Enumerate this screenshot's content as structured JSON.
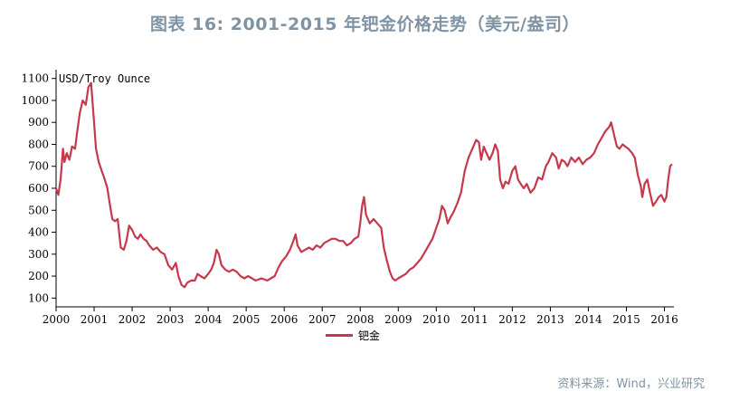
{
  "title": "图表 16: 2001-2015 年钯金价格走势（美元/盎司）",
  "source": "资料来源：Wind，兴业研究",
  "colors": {
    "series": "#c6384b",
    "title": "#7f93a3",
    "source": "#7f93a3",
    "axis": "#000000"
  },
  "chart_data": {
    "type": "line",
    "title": "",
    "ylabel": "USD/Troy Ounce",
    "xlabel": "",
    "ylim": [
      60,
      1140
    ],
    "xlim": [
      2000.0,
      2016.25
    ],
    "yticks": [
      100,
      200,
      300,
      400,
      500,
      600,
      700,
      800,
      900,
      1000,
      1100
    ],
    "xticks": [
      "2000",
      "2001",
      "2002",
      "2003",
      "2004",
      "2005",
      "2006",
      "2007",
      "2008",
      "2009",
      "2010",
      "2011",
      "2012",
      "2013",
      "2014",
      "2015",
      "2016"
    ],
    "legend": "bottom-center",
    "grid": false,
    "series": [
      {
        "name": "钯金",
        "color": "#c6384b",
        "points": [
          [
            2000.0,
            600
          ],
          [
            2000.06,
            570
          ],
          [
            2000.12,
            640
          ],
          [
            2000.18,
            780
          ],
          [
            2000.22,
            720
          ],
          [
            2000.28,
            760
          ],
          [
            2000.35,
            730
          ],
          [
            2000.42,
            790
          ],
          [
            2000.5,
            780
          ],
          [
            2000.55,
            850
          ],
          [
            2000.62,
            940
          ],
          [
            2000.7,
            1000
          ],
          [
            2000.78,
            980
          ],
          [
            2000.85,
            1060
          ],
          [
            2000.92,
            1080
          ],
          [
            2001.0,
            900
          ],
          [
            2001.05,
            780
          ],
          [
            2001.12,
            720
          ],
          [
            2001.2,
            680
          ],
          [
            2001.28,
            640
          ],
          [
            2001.35,
            600
          ],
          [
            2001.42,
            520
          ],
          [
            2001.48,
            460
          ],
          [
            2001.55,
            450
          ],
          [
            2001.62,
            460
          ],
          [
            2001.7,
            330
          ],
          [
            2001.78,
            320
          ],
          [
            2001.85,
            360
          ],
          [
            2001.92,
            430
          ],
          [
            2002.0,
            410
          ],
          [
            2002.08,
            380
          ],
          [
            2002.15,
            370
          ],
          [
            2002.22,
            390
          ],
          [
            2002.3,
            370
          ],
          [
            2002.38,
            360
          ],
          [
            2002.45,
            340
          ],
          [
            2002.55,
            320
          ],
          [
            2002.65,
            330
          ],
          [
            2002.75,
            310
          ],
          [
            2002.85,
            300
          ],
          [
            2002.95,
            250
          ],
          [
            2003.05,
            230
          ],
          [
            2003.15,
            260
          ],
          [
            2003.22,
            200
          ],
          [
            2003.3,
            160
          ],
          [
            2003.38,
            150
          ],
          [
            2003.45,
            170
          ],
          [
            2003.55,
            180
          ],
          [
            2003.65,
            180
          ],
          [
            2003.72,
            210
          ],
          [
            2003.8,
            200
          ],
          [
            2003.9,
            190
          ],
          [
            2004.0,
            210
          ],
          [
            2004.08,
            230
          ],
          [
            2004.15,
            260
          ],
          [
            2004.22,
            320
          ],
          [
            2004.28,
            300
          ],
          [
            2004.35,
            250
          ],
          [
            2004.45,
            230
          ],
          [
            2004.55,
            220
          ],
          [
            2004.65,
            230
          ],
          [
            2004.75,
            220
          ],
          [
            2004.85,
            200
          ],
          [
            2004.95,
            190
          ],
          [
            2005.05,
            200
          ],
          [
            2005.15,
            190
          ],
          [
            2005.25,
            180
          ],
          [
            2005.4,
            190
          ],
          [
            2005.55,
            180
          ],
          [
            2005.65,
            190
          ],
          [
            2005.75,
            200
          ],
          [
            2005.85,
            240
          ],
          [
            2005.95,
            270
          ],
          [
            2006.05,
            290
          ],
          [
            2006.15,
            320
          ],
          [
            2006.22,
            350
          ],
          [
            2006.3,
            390
          ],
          [
            2006.35,
            340
          ],
          [
            2006.45,
            310
          ],
          [
            2006.55,
            320
          ],
          [
            2006.65,
            330
          ],
          [
            2006.75,
            320
          ],
          [
            2006.85,
            340
          ],
          [
            2006.95,
            330
          ],
          [
            2007.05,
            350
          ],
          [
            2007.15,
            360
          ],
          [
            2007.25,
            370
          ],
          [
            2007.35,
            370
          ],
          [
            2007.45,
            360
          ],
          [
            2007.55,
            360
          ],
          [
            2007.65,
            340
          ],
          [
            2007.75,
            350
          ],
          [
            2007.85,
            370
          ],
          [
            2007.95,
            380
          ],
          [
            2008.0,
            440
          ],
          [
            2008.05,
            520
          ],
          [
            2008.1,
            560
          ],
          [
            2008.15,
            480
          ],
          [
            2008.25,
            440
          ],
          [
            2008.35,
            460
          ],
          [
            2008.45,
            440
          ],
          [
            2008.55,
            420
          ],
          [
            2008.62,
            330
          ],
          [
            2008.7,
            270
          ],
          [
            2008.78,
            220
          ],
          [
            2008.85,
            190
          ],
          [
            2008.92,
            180
          ],
          [
            2009.0,
            190
          ],
          [
            2009.1,
            200
          ],
          [
            2009.2,
            210
          ],
          [
            2009.3,
            230
          ],
          [
            2009.4,
            240
          ],
          [
            2009.5,
            260
          ],
          [
            2009.6,
            280
          ],
          [
            2009.7,
            310
          ],
          [
            2009.8,
            340
          ],
          [
            2009.9,
            370
          ],
          [
            2010.0,
            420
          ],
          [
            2010.08,
            460
          ],
          [
            2010.15,
            520
          ],
          [
            2010.22,
            500
          ],
          [
            2010.3,
            440
          ],
          [
            2010.38,
            470
          ],
          [
            2010.45,
            490
          ],
          [
            2010.55,
            530
          ],
          [
            2010.65,
            580
          ],
          [
            2010.75,
            680
          ],
          [
            2010.85,
            740
          ],
          [
            2010.95,
            780
          ],
          [
            2011.05,
            820
          ],
          [
            2011.12,
            810
          ],
          [
            2011.18,
            730
          ],
          [
            2011.25,
            790
          ],
          [
            2011.32,
            760
          ],
          [
            2011.4,
            730
          ],
          [
            2011.48,
            760
          ],
          [
            2011.55,
            800
          ],
          [
            2011.62,
            770
          ],
          [
            2011.68,
            640
          ],
          [
            2011.75,
            600
          ],
          [
            2011.82,
            630
          ],
          [
            2011.9,
            620
          ],
          [
            2012.0,
            680
          ],
          [
            2012.08,
            700
          ],
          [
            2012.15,
            640
          ],
          [
            2012.22,
            620
          ],
          [
            2012.3,
            600
          ],
          [
            2012.38,
            620
          ],
          [
            2012.48,
            580
          ],
          [
            2012.58,
            600
          ],
          [
            2012.68,
            650
          ],
          [
            2012.78,
            640
          ],
          [
            2012.88,
            700
          ],
          [
            2012.95,
            720
          ],
          [
            2013.05,
            760
          ],
          [
            2013.15,
            740
          ],
          [
            2013.22,
            690
          ],
          [
            2013.3,
            730
          ],
          [
            2013.38,
            720
          ],
          [
            2013.45,
            700
          ],
          [
            2013.55,
            740
          ],
          [
            2013.65,
            720
          ],
          [
            2013.75,
            740
          ],
          [
            2013.85,
            710
          ],
          [
            2013.95,
            730
          ],
          [
            2014.05,
            740
          ],
          [
            2014.15,
            760
          ],
          [
            2014.25,
            800
          ],
          [
            2014.35,
            830
          ],
          [
            2014.45,
            860
          ],
          [
            2014.55,
            880
          ],
          [
            2014.6,
            900
          ],
          [
            2014.68,
            840
          ],
          [
            2014.75,
            790
          ],
          [
            2014.82,
            780
          ],
          [
            2014.9,
            800
          ],
          [
            2014.97,
            790
          ],
          [
            2015.05,
            780
          ],
          [
            2015.15,
            760
          ],
          [
            2015.22,
            740
          ],
          [
            2015.3,
            660
          ],
          [
            2015.38,
            610
          ],
          [
            2015.42,
            560
          ],
          [
            2015.48,
            620
          ],
          [
            2015.55,
            640
          ],
          [
            2015.62,
            580
          ],
          [
            2015.7,
            520
          ],
          [
            2015.78,
            540
          ],
          [
            2015.85,
            560
          ],
          [
            2015.92,
            570
          ],
          [
            2016.0,
            540
          ],
          [
            2016.05,
            560
          ],
          [
            2016.1,
            640
          ],
          [
            2016.15,
            700
          ],
          [
            2016.2,
            710
          ]
        ]
      }
    ]
  }
}
